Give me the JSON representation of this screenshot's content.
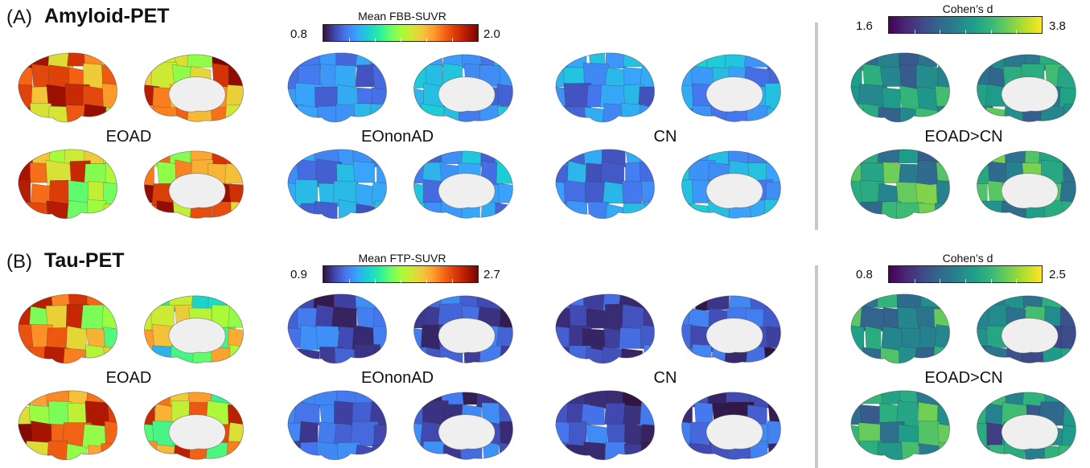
{
  "panels": [
    {
      "id": "A",
      "letter": "(A)",
      "title": "Amyloid-PET",
      "colorbar": {
        "title": "Mean FBB-SUVR",
        "min": "0.8",
        "max": "2.0",
        "colormap": "turbo"
      },
      "effect_colorbar": {
        "title": "Cohen’s d",
        "min": "1.6",
        "max": "3.8",
        "colormap": "viridis"
      },
      "groups": [
        "EOAD",
        "EOnonAD",
        "CN",
        "EOAD>CN"
      ],
      "brain_levels": {
        "EOAD": [
          0.72,
          0.75,
          0.7,
          0.7
        ],
        "EOnonAD": [
          0.18,
          0.2,
          0.17,
          0.2
        ],
        "CN": [
          0.18,
          0.21,
          0.17,
          0.21
        ],
        "EOAD>CN": [
          0.55,
          0.55,
          0.55,
          0.6
        ]
      }
    },
    {
      "id": "B",
      "letter": "(B)",
      "title": "Tau-PET",
      "colorbar": {
        "title": "Mean FTP-SUVR",
        "min": "0.9",
        "max": "2.7",
        "colormap": "turbo"
      },
      "effect_colorbar": {
        "title": "Cohen’s d",
        "min": "0.8",
        "max": "2.5",
        "colormap": "viridis"
      },
      "groups": [
        "EOAD",
        "EOnonAD",
        "CN",
        "EOAD>CN"
      ],
      "brain_levels": {
        "EOAD": [
          0.65,
          0.5,
          0.72,
          0.65
        ],
        "EOnonAD": [
          0.1,
          0.1,
          0.1,
          0.1
        ],
        "CN": [
          0.09,
          0.09,
          0.09,
          0.09
        ],
        "EOAD>CN": [
          0.55,
          0.45,
          0.55,
          0.45
        ]
      }
    }
  ]
}
